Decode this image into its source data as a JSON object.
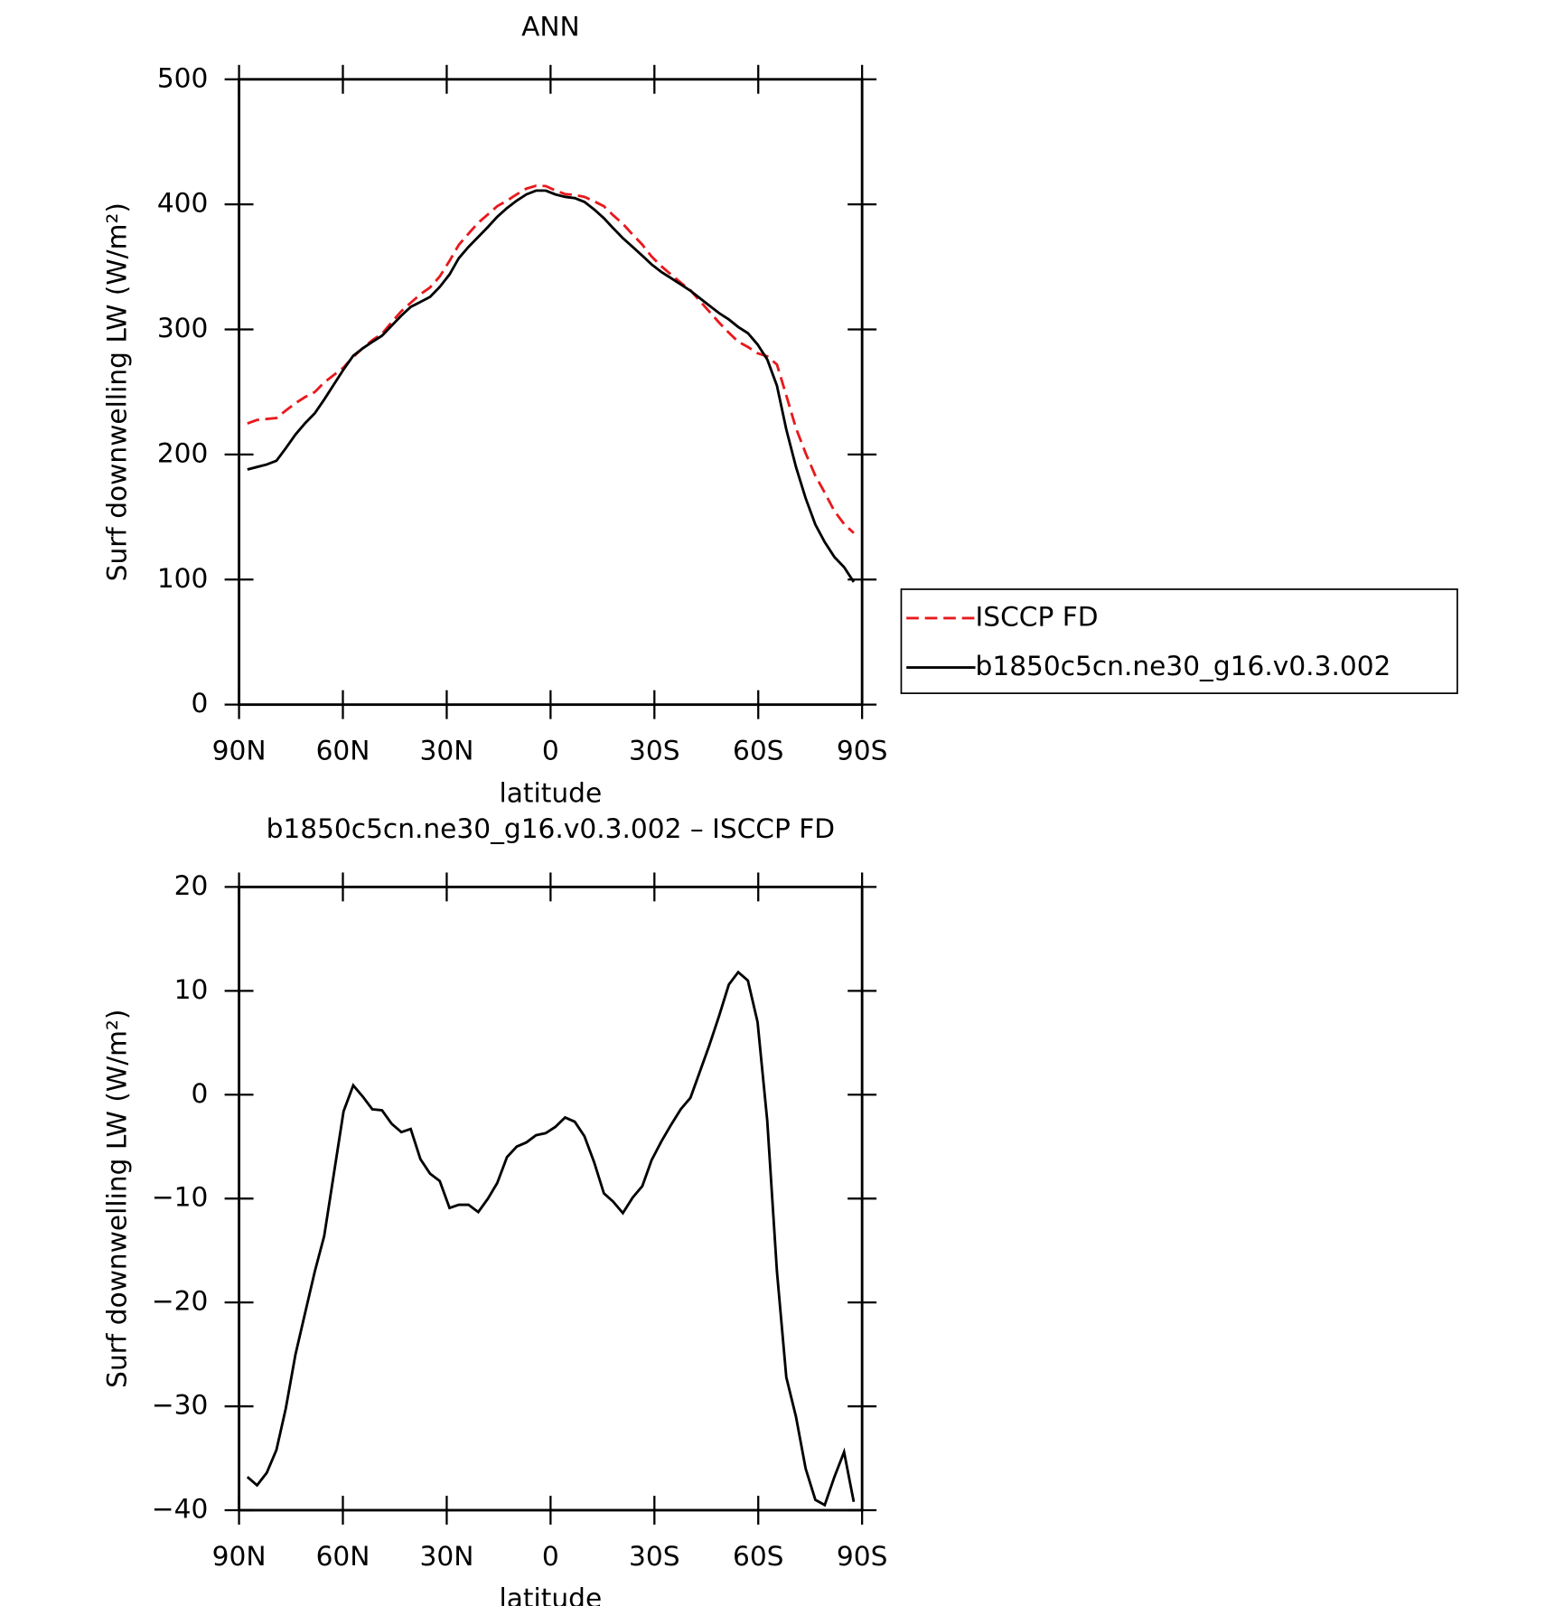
{
  "chart_data": [
    {
      "type": "line",
      "title": "ANN",
      "xlabel": "latitude",
      "ylabel": "Surf downwelling LW (W/m²)",
      "x": [
        87.6,
        84.8,
        82.0,
        79.2,
        76.5,
        73.7,
        70.9,
        68.1,
        65.4,
        62.6,
        59.8,
        57.0,
        54.2,
        51.5,
        48.7,
        45.9,
        43.1,
        40.4,
        37.6,
        34.8,
        32.0,
        29.2,
        26.5,
        23.7,
        20.9,
        18.1,
        15.4,
        12.6,
        9.8,
        7.0,
        4.2,
        1.4,
        -1.4,
        -4.2,
        -7.0,
        -9.8,
        -12.6,
        -15.4,
        -18.1,
        -20.9,
        -23.7,
        -26.5,
        -29.2,
        -32.0,
        -34.8,
        -37.6,
        -40.4,
        -43.1,
        -45.9,
        -48.7,
        -51.5,
        -54.2,
        -57.0,
        -59.8,
        -62.6,
        -65.4,
        -68.1,
        -70.9,
        -73.7,
        -76.5,
        -79.2,
        -82.0,
        -84.8,
        -87.6
      ],
      "xlim": [
        90,
        -90
      ],
      "xticks": [
        {
          "value": 90,
          "label": "90N"
        },
        {
          "value": 60,
          "label": "60N"
        },
        {
          "value": 30,
          "label": "30N"
        },
        0,
        {
          "value": -30,
          "label": "30S"
        },
        {
          "value": -60,
          "label": "60S"
        },
        {
          "value": -90,
          "label": "90S"
        }
      ],
      "ylim": [
        0,
        500
      ],
      "yticks": [
        0,
        100,
        200,
        300,
        400,
        500
      ],
      "series": [
        {
          "name": "ISCCP FD",
          "color": "#e8191c",
          "dashed": true,
          "values": [
            224.8,
            227.6,
            228.4,
            229.2,
            235.2,
            241,
            246,
            250,
            257.6,
            263.6,
            269.6,
            278.1,
            285.2,
            291.4,
            296.5,
            305.8,
            314.6,
            321.3,
            328.2,
            333.6,
            342.3,
            354.9,
            367.6,
            376.6,
            385.3,
            392,
            398.5,
            403,
            408,
            412.6,
            414.9,
            414.7,
            411.1,
            408.2,
            407.6,
            406,
            402.5,
            398.5,
            391.3,
            384.4,
            375.9,
            367.8,
            358.3,
            350.5,
            343.9,
            337.4,
            331.3,
            322.8,
            314.2,
            305.4,
            297.4,
            290.2,
            286,
            281,
            278.5,
            272,
            247.2,
            221,
            201,
            183,
            169.5,
            154.8,
            144.4,
            137.2
          ]
        },
        {
          "name": "b1850c5cn.ne30_g16.v0.3.002",
          "color": "#000000",
          "dashed": false,
          "values": [
            188,
            190,
            192,
            195,
            205,
            216,
            225,
            233,
            244,
            256,
            268,
            279,
            285,
            290,
            295,
            303,
            311,
            318,
            322,
            326,
            334,
            344,
            357,
            366,
            374,
            382,
            390,
            397,
            403,
            408,
            411,
            411,
            408,
            406,
            405,
            402,
            396,
            389,
            381,
            373,
            366,
            359,
            352,
            346,
            341,
            336,
            331,
            325,
            319,
            313,
            308,
            302,
            297,
            288,
            276,
            255,
            220,
            190,
            165,
            144,
            130,
            118,
            110,
            98
          ]
        }
      ]
    },
    {
      "type": "line",
      "title": "b1850c5cn.ne30_g16.v0.3.002 – ISCCP FD",
      "xlabel": "latitude",
      "ylabel": "Surf downwelling LW (W/m²)",
      "x": [
        87.6,
        84.8,
        82.0,
        79.2,
        76.5,
        73.7,
        70.9,
        68.1,
        65.4,
        62.6,
        59.8,
        57.0,
        54.2,
        51.5,
        48.7,
        45.9,
        43.1,
        40.4,
        37.6,
        34.8,
        32.0,
        29.2,
        26.5,
        23.7,
        20.9,
        18.1,
        15.4,
        12.6,
        9.8,
        7.0,
        4.2,
        1.4,
        -1.4,
        -4.2,
        -7.0,
        -9.8,
        -12.6,
        -15.4,
        -18.1,
        -20.9,
        -23.7,
        -26.5,
        -29.2,
        -32.0,
        -34.8,
        -37.6,
        -40.4,
        -43.1,
        -45.9,
        -48.7,
        -51.5,
        -54.2,
        -57.0,
        -59.8,
        -62.6,
        -65.4,
        -68.1,
        -70.9,
        -73.7,
        -76.5,
        -79.2,
        -82.0,
        -84.8,
        -87.6
      ],
      "xlim": [
        90,
        -90
      ],
      "xticks": [
        {
          "value": 90,
          "label": "90N"
        },
        {
          "value": 60,
          "label": "60N"
        },
        {
          "value": 30,
          "label": "30N"
        },
        0,
        {
          "value": -30,
          "label": "30S"
        },
        {
          "value": -60,
          "label": "60S"
        },
        {
          "value": -90,
          "label": "90S"
        }
      ],
      "ylim": [
        -40,
        20
      ],
      "yticks": [
        {
          "value": -40,
          "label": "−40"
        },
        {
          "value": -30,
          "label": "−30"
        },
        {
          "value": -20,
          "label": "−20"
        },
        {
          "value": -10,
          "label": "−10"
        },
        0,
        10,
        20
      ],
      "series": [
        {
          "color": "#000000",
          "dashed": false,
          "values": [
            -36.8,
            -37.6,
            -36.4,
            -34.2,
            -30.2,
            -25,
            -21,
            -17,
            -13.6,
            -7.6,
            -1.6,
            0.9,
            -0.2,
            -1.4,
            -1.5,
            -2.8,
            -3.6,
            -3.3,
            -6.2,
            -7.6,
            -8.3,
            -10.9,
            -10.6,
            -10.6,
            -11.3,
            -10,
            -8.5,
            -6,
            -5,
            -4.6,
            -3.9,
            -3.7,
            -3.1,
            -2.2,
            -2.6,
            -4,
            -6.5,
            -9.5,
            -10.3,
            -11.4,
            -9.9,
            -8.8,
            -6.3,
            -4.5,
            -2.9,
            -1.4,
            -0.3,
            2.2,
            4.8,
            7.6,
            10.6,
            11.8,
            11,
            7,
            -2.5,
            -17,
            -27.2,
            -31,
            -36,
            -39,
            -39.5,
            -36.8,
            -34.4,
            -39.2
          ]
        }
      ]
    }
  ]
}
